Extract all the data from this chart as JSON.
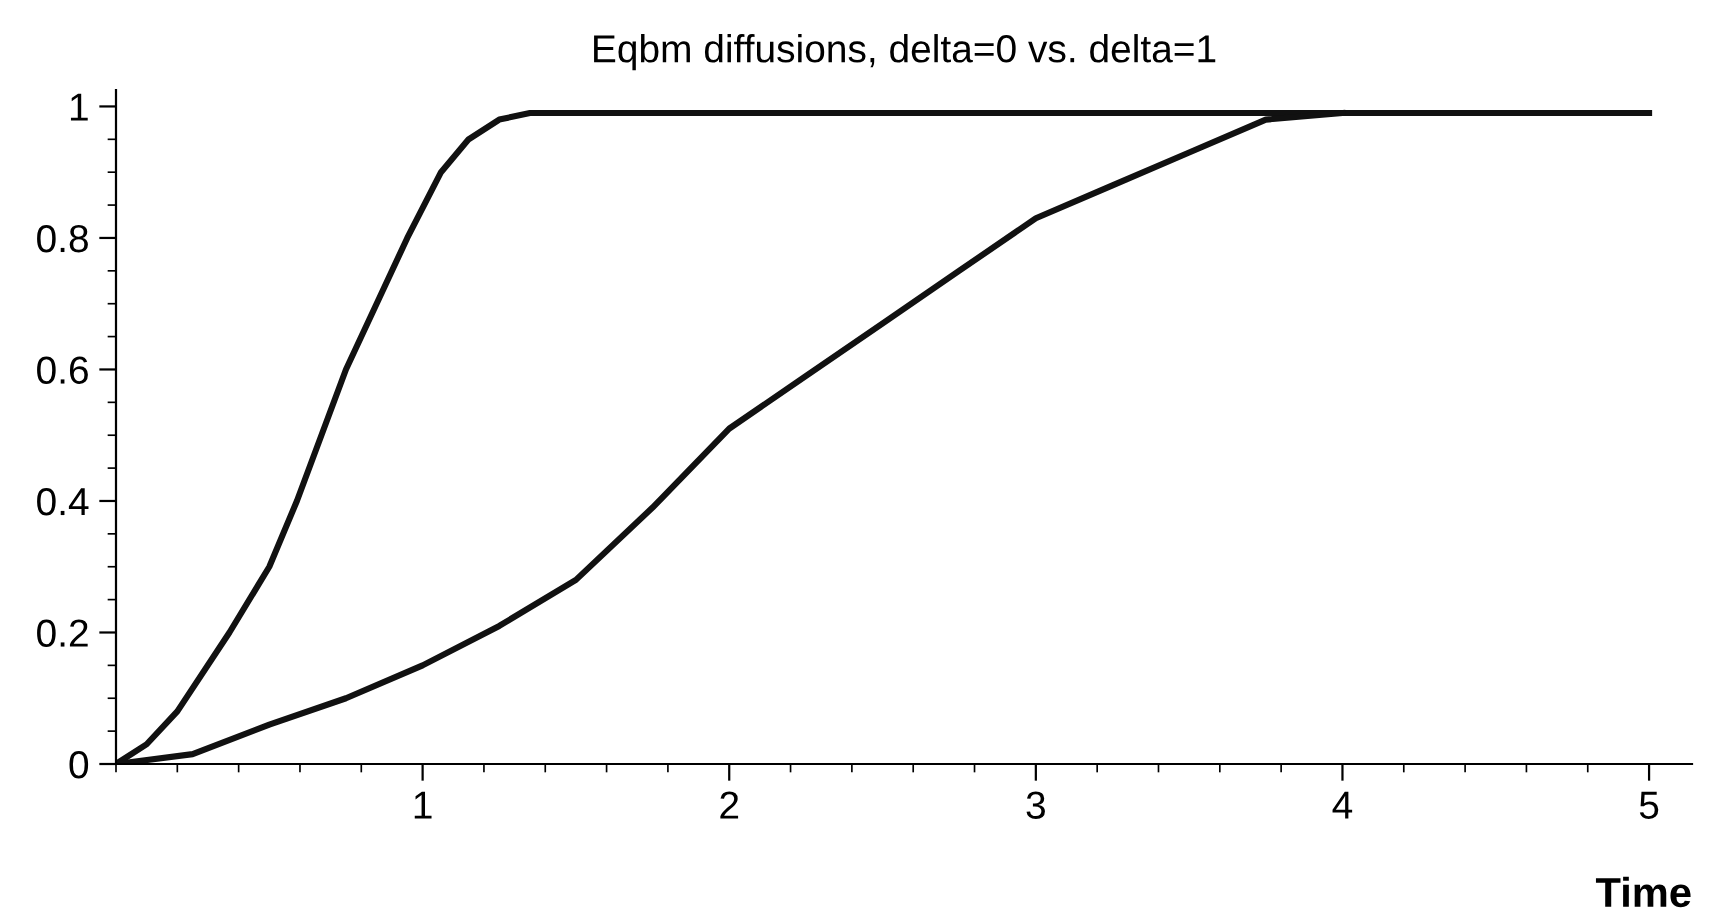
{
  "chart_data": {
    "type": "line",
    "title": "Eqbm diffusions, delta=0 vs. delta=1",
    "xlabel": "Time",
    "series": [
      {
        "color": "#111111",
        "x": [
          0,
          0.1,
          0.2,
          0.37,
          0.5,
          0.59,
          0.67,
          0.75,
          0.85,
          0.95,
          1.06,
          1.15,
          1.25,
          1.35,
          5
        ],
        "values": [
          0,
          0.03,
          0.08,
          0.2,
          0.3,
          0.4,
          0.5,
          0.6,
          0.7,
          0.8,
          0.9,
          0.95,
          0.98,
          0.99,
          0.99
        ]
      },
      {
        "color": "#111111",
        "x": [
          0,
          0.25,
          0.5,
          0.75,
          1,
          1.25,
          1.5,
          1.75,
          2,
          2.25,
          2.5,
          2.75,
          3,
          3.25,
          3.5,
          3.75,
          4
        ],
        "values": [
          0,
          0.015,
          0.06,
          0.1,
          0.15,
          0.21,
          0.28,
          0.39,
          0.51,
          0.59,
          0.67,
          0.75,
          0.83,
          0.88,
          0.93,
          0.98,
          0.99
        ]
      }
    ],
    "xlim": [
      0,
      5.14
    ],
    "ylim": [
      0,
      1.025
    ],
    "xticks": [
      1,
      2,
      3,
      4,
      5
    ],
    "yticks": [
      0,
      0.2,
      0.4,
      0.6,
      0.8,
      1
    ],
    "grid": false,
    "legend": false,
    "marker": "none",
    "line_style": "solid"
  }
}
